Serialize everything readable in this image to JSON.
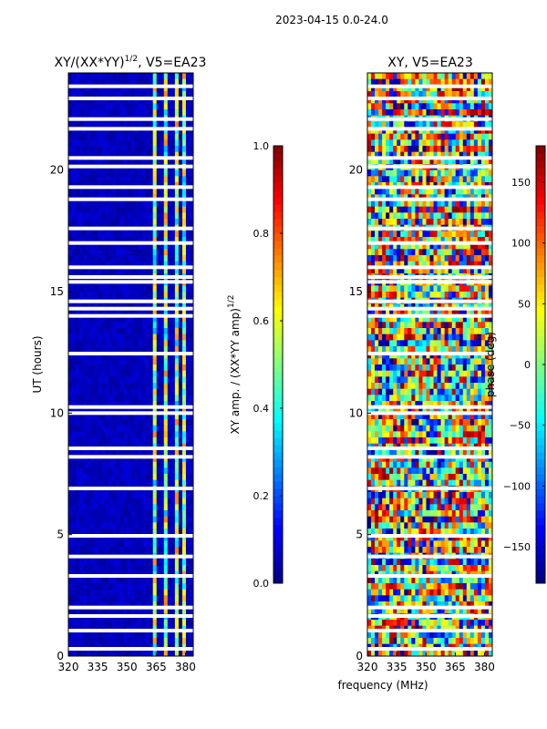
{
  "suptitle": "2023-04-15 0.0-24.0",
  "xlabel": "frequency (MHz)",
  "colors": {
    "jet": [
      "#00007f",
      "#0000ff",
      "#007fff",
      "#00ffff",
      "#7fff7f",
      "#ffff00",
      "#ff7f00",
      "#ff0000",
      "#7f0000"
    ]
  },
  "chart_data": [
    {
      "type": "heatmap",
      "title": "XY/(XX*YY)",
      "title_sup": "1/2",
      "title_tail": ", V5=EA23",
      "xlabel": "",
      "ylabel": "UT (hours)",
      "xlim": [
        320,
        384
      ],
      "ylim": [
        0,
        24
      ],
      "xticks": [
        320,
        335,
        350,
        365,
        380
      ],
      "yticks": [
        0,
        5,
        10,
        15,
        20
      ],
      "colorbar": {
        "label": "XY amp. / (XX*YY amp)",
        "label_sup": "1/2",
        "range": [
          0.0,
          1.0
        ],
        "ticks": [
          "0.0",
          "0.2",
          "0.4",
          "0.6",
          "0.8",
          "1.0"
        ]
      },
      "description": "amplitude mostly low (~0.0-0.1) below 363 MHz, elevated (0.3-0.8) in bands 363-366, 369-371, 374-376, 378-381 MHz",
      "flagged_hours": [
        0.3,
        1.05,
        1.65,
        2.0,
        3.3,
        4.1,
        4.95,
        6.9,
        8.2,
        8.55,
        10.0,
        10.25,
        12.45,
        14.0,
        14.3,
        14.6,
        15.4,
        15.6,
        16.0,
        17.0,
        17.6,
        18.8,
        19.3,
        20.15,
        20.5,
        21.7,
        22.1,
        22.95,
        23.45
      ]
    },
    {
      "type": "heatmap",
      "title": "XY, V5=EA23",
      "xlabel": "",
      "ylabel": "",
      "xlim": [
        320,
        384
      ],
      "ylim": [
        0,
        24
      ],
      "xticks": [
        320,
        335,
        350,
        365,
        380
      ],
      "yticks": [
        0,
        5,
        10,
        15,
        20
      ],
      "colorbar": {
        "label": "phase (deg)",
        "range": [
          -180,
          180
        ],
        "ticks": [
          "−150",
          "−100",
          "−50",
          "0",
          "50",
          "100",
          "150"
        ]
      },
      "description": "phase varies widely (-180 to 180 deg) with horizontal banding",
      "flagged_hours": [
        0.3,
        1.05,
        1.65,
        2.0,
        3.3,
        4.1,
        4.95,
        6.9,
        8.2,
        8.55,
        10.0,
        10.25,
        12.45,
        14.0,
        14.3,
        14.6,
        15.4,
        15.6,
        16.0,
        17.0,
        17.6,
        18.8,
        19.3,
        20.15,
        20.5,
        21.7,
        22.1,
        22.95,
        23.45
      ]
    }
  ]
}
